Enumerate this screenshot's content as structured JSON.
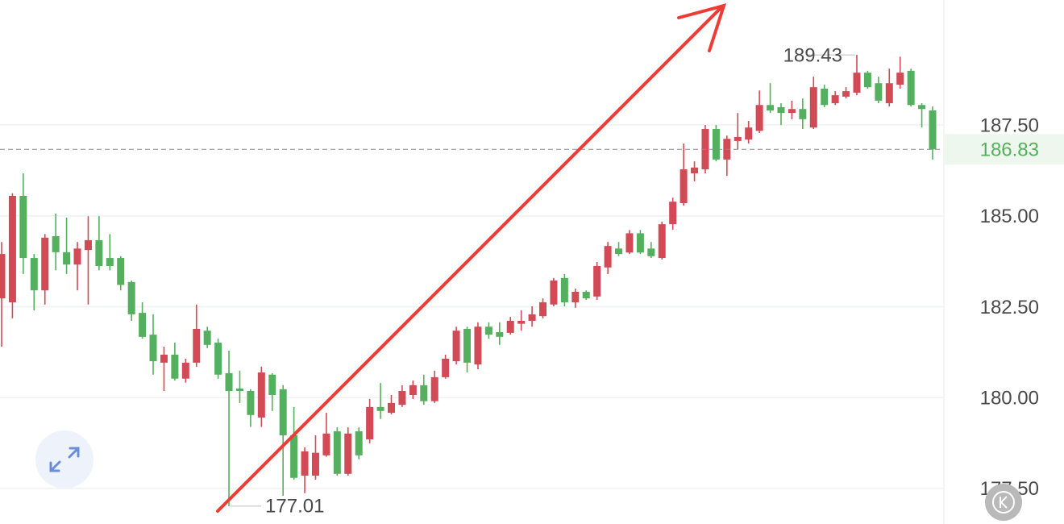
{
  "chart_data": {
    "type": "candlestick",
    "up_color": "#d24a55",
    "down_color": "#54b05e",
    "grid": true,
    "ylim": [
      176.52,
      190.94
    ],
    "yticks": [
      {
        "value": 177.5,
        "label": "177.50"
      },
      {
        "value": 180,
        "label": "180.00"
      },
      {
        "value": 182.5,
        "label": "182.50"
      },
      {
        "value": 185,
        "label": "185.00"
      },
      {
        "value": 187.5,
        "label": "187.50"
      }
    ],
    "last_price": 186.83,
    "high_label": 189.43,
    "low_label": 177.01,
    "open": [
      182.73,
      182.62,
      185.55,
      183.84,
      182.95,
      184.44,
      184.0,
      183.66,
      184.06,
      184.33,
      183.84,
      183.84,
      183.18,
      182.33,
      181.73,
      180.96,
      181.18,
      180.52,
      180.96,
      181.84,
      181.51,
      180.67,
      180.25,
      180.18,
      179.45,
      180.63,
      180.23,
      178.96,
      177.85,
      177.85,
      178.41,
      179.07,
      177.9,
      179.07,
      178.85,
      179.74,
      179.58,
      179.8,
      180.07,
      180.34,
      179.9,
      180.56,
      181.0,
      181.89,
      180.91,
      181.95,
      181.8,
      181.78,
      182.03,
      182.11,
      182.24,
      182.56,
      183.29,
      182.62,
      182.91,
      182.78,
      183.58,
      184.1,
      183.99,
      184.52,
      184.1,
      183.84,
      184.77,
      185.35,
      186.17,
      186.28,
      187.39,
      186.55,
      187.06,
      187.1,
      187.34,
      188.05,
      187.99,
      187.83,
      187.94,
      187.43,
      188.5,
      188.1,
      188.28,
      188.39,
      188.94,
      188.65,
      188.1,
      188.61,
      188.99,
      188.05,
      187.9
    ],
    "high": [
      184.28,
      185.62,
      186.17,
      183.95,
      184.5,
      185.06,
      184.95,
      184.28,
      184.99,
      184.99,
      184.5,
      183.89,
      183.22,
      182.62,
      182.29,
      181.4,
      181.51,
      181.07,
      182.56,
      181.95,
      181.62,
      181.29,
      180.74,
      180.23,
      180.85,
      180.67,
      180.34,
      179.74,
      178.63,
      178.96,
      179.58,
      179.18,
      179.18,
      179.18,
      179.96,
      180.4,
      180.07,
      180.34,
      180.47,
      180.63,
      180.74,
      181.18,
      181.95,
      181.95,
      182.07,
      182.07,
      182.07,
      182.22,
      182.4,
      182.51,
      182.73,
      183.29,
      183.4,
      183.0,
      182.95,
      183.73,
      184.28,
      184.28,
      184.61,
      184.61,
      184.28,
      184.84,
      185.5,
      186.99,
      186.5,
      187.5,
      187.5,
      187.21,
      187.83,
      187.61,
      188.45,
      188.65,
      188.1,
      188.17,
      188.23,
      188.83,
      188.61,
      188.43,
      188.54,
      189.43,
      188.99,
      188.83,
      189.05,
      189.38,
      189.05,
      188.1,
      188.01
    ],
    "low": [
      181.4,
      182.18,
      183.4,
      182.4,
      182.56,
      183.5,
      183.4,
      182.95,
      182.56,
      183.5,
      183.5,
      182.95,
      182.11,
      181.62,
      180.63,
      180.18,
      180.47,
      180.41,
      180.85,
      181.36,
      180.52,
      177.01,
      179.85,
      179.19,
      179.19,
      179.63,
      177.3,
      177.74,
      177.37,
      177.74,
      178.37,
      177.85,
      177.85,
      178.3,
      178.74,
      179.41,
      179.54,
      179.74,
      179.96,
      179.8,
      179.85,
      180.52,
      180.91,
      180.69,
      180.78,
      181.62,
      181.45,
      181.73,
      181.84,
      181.95,
      182.18,
      182.51,
      182.51,
      182.47,
      182.69,
      182.69,
      183.4,
      183.89,
      183.95,
      183.95,
      183.84,
      183.8,
      184.62,
      185.28,
      185.95,
      186.17,
      186.5,
      186.1,
      186.83,
      186.99,
      187.28,
      187.83,
      187.5,
      187.66,
      187.39,
      187.39,
      187.99,
      188.05,
      188.23,
      188.32,
      188.5,
      188.1,
      188.01,
      188.5,
      188.01,
      187.43,
      186.55
    ],
    "close": [
      183.95,
      185.55,
      183.84,
      182.95,
      184.4,
      184.0,
      183.66,
      184.1,
      184.33,
      183.62,
      183.62,
      183.1,
      182.29,
      181.67,
      181.0,
      181.18,
      180.52,
      180.96,
      181.89,
      181.45,
      180.63,
      180.18,
      180.18,
      179.52,
      180.69,
      180.07,
      178.96,
      177.79,
      178.52,
      178.48,
      179.01,
      177.9,
      179.01,
      178.41,
      179.74,
      179.63,
      179.85,
      180.18,
      180.34,
      179.9,
      180.56,
      181.07,
      181.84,
      180.96,
      181.95,
      181.73,
      181.67,
      182.11,
      182.11,
      182.29,
      182.62,
      183.22,
      182.62,
      182.91,
      182.73,
      183.62,
      184.17,
      183.95,
      184.52,
      183.99,
      183.89,
      184.77,
      185.39,
      186.28,
      186.33,
      187.39,
      186.55,
      187.12,
      187.17,
      187.43,
      188.05,
      187.9,
      187.83,
      187.94,
      187.66,
      188.54,
      188.05,
      188.32,
      188.43,
      188.94,
      188.54,
      188.17,
      188.65,
      188.94,
      188.05,
      187.94,
      186.83
    ]
  }
}
